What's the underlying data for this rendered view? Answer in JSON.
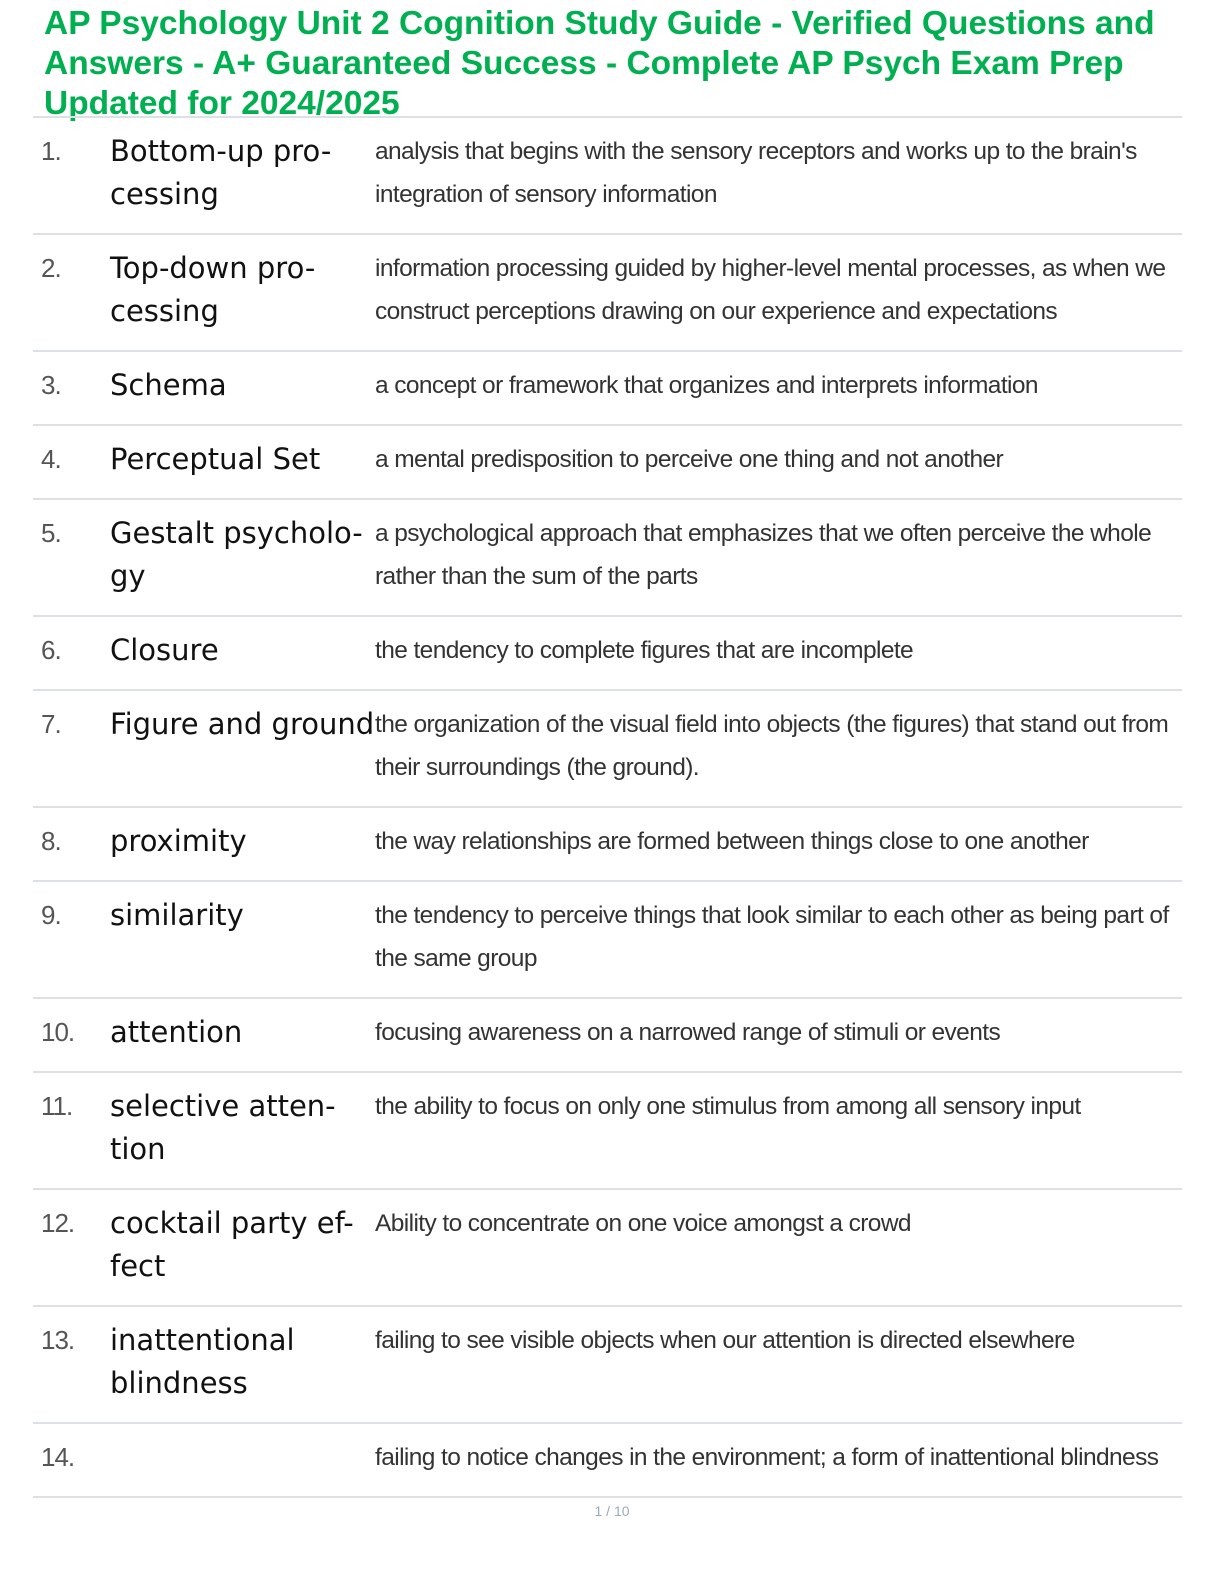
{
  "title": "AP Psychology Unit 2 Cognition Study Guide - Verified Questions and Answers - A+ Guaranteed Success - Complete AP Psych Exam Prep Updated for 2024/2025",
  "items": [
    {
      "num": "1.",
      "term": "Bottom-up pro-cessing",
      "definition": "analysis that begins with the sensory receptors and works up to the brain's integration of sensory information"
    },
    {
      "num": "2.",
      "term": "Top-down pro-cessing",
      "definition": "information processing guided by higher-level mental processes, as when we construct perceptions drawing on our experience and expectations"
    },
    {
      "num": "3.",
      "term": "Schema",
      "definition": "a concept or framework that organizes and interprets information"
    },
    {
      "num": "4.",
      "term": "Perceptual Set",
      "definition": "a mental predisposition to perceive one thing and not another"
    },
    {
      "num": "5.",
      "term": "Gestalt psycholo-gy",
      "definition": "a psychological approach that emphasizes that we often perceive the whole rather than the sum of the parts"
    },
    {
      "num": "6.",
      "term": "Closure",
      "definition": "the tendency to complete figures that are incomplete"
    },
    {
      "num": "7.",
      "term": "Figure and ground",
      "definition": "the organization of the visual field into objects (the figures) that stand out from their surroundings (the ground)."
    },
    {
      "num": "8.",
      "term": "proximity",
      "definition": "the way relationships are formed between things close to one another"
    },
    {
      "num": "9.",
      "term": "similarity",
      "definition": "the tendency to perceive things that look similar to each other as being part of the same group"
    },
    {
      "num": "10.",
      "term": "attention",
      "definition": "focusing awareness on a narrowed range of stimuli or events"
    },
    {
      "num": "11.",
      "term": "selective atten-tion",
      "definition": "the ability to focus on only one stimulus from among all sensory input"
    },
    {
      "num": "12.",
      "term": "cocktail party ef-fect",
      "definition": "Ability to concentrate on one voice amongst a crowd"
    },
    {
      "num": "13.",
      "term": "inattentional blindness",
      "definition": "failing to see visible objects when our attention is directed elsewhere"
    },
    {
      "num": "14.",
      "term": "",
      "definition": "failing to notice changes in the environment; a form of inattentional blindness"
    }
  ],
  "page_number": "1 / 10"
}
